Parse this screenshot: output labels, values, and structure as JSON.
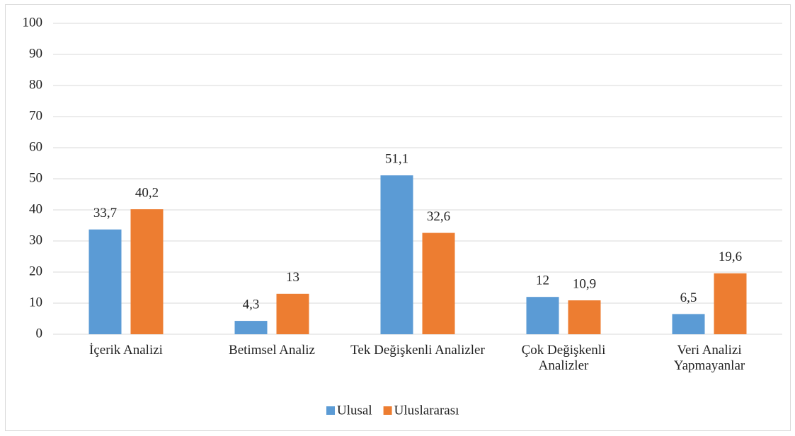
{
  "chart_data": {
    "type": "bar",
    "categories": [
      "İçerik Analizi",
      "Betimsel Analiz",
      "Tek Değişkenli Analizler",
      "Çok Değişkenli Analizler",
      "Veri Analizi Yapmayanlar"
    ],
    "series": [
      {
        "name": "Ulusal",
        "color": "#5b9bd5",
        "values": [
          33.7,
          4.3,
          51.1,
          12,
          6.5
        ],
        "value_labels": [
          "33,7",
          "4,3",
          "51,1",
          "12",
          "6,5"
        ]
      },
      {
        "name": "Uluslararası",
        "color": "#ed7d31",
        "values": [
          40.2,
          13,
          32.6,
          10.9,
          19.6
        ],
        "value_labels": [
          "40,2",
          "13",
          "32,6",
          "10,9",
          "19,6"
        ]
      }
    ],
    "ylim": [
      0,
      100
    ],
    "yticks": [
      0,
      10,
      20,
      30,
      40,
      50,
      60,
      70,
      80,
      90,
      100
    ],
    "grid": true,
    "legend": "bottom"
  }
}
